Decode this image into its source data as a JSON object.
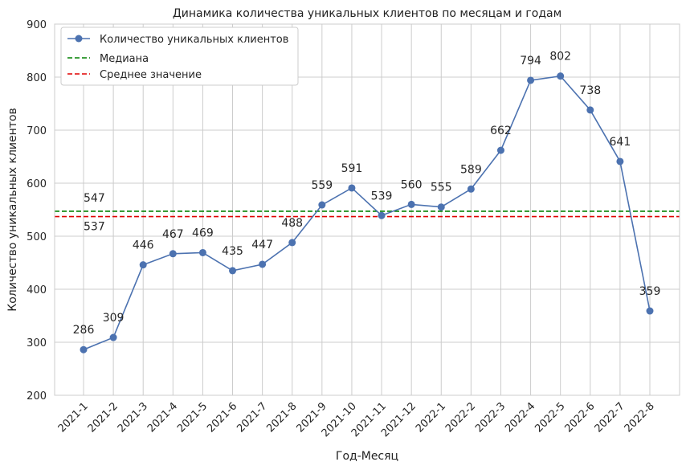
{
  "chart_data": {
    "type": "line",
    "title": "Динамика количества уникальных клиентов по месяцам и годам",
    "xlabel": "Год-Месяц",
    "ylabel": "Количество уникальных клиентов",
    "ylim": [
      200,
      900
    ],
    "yticks": [
      200,
      300,
      400,
      500,
      600,
      700,
      800,
      900
    ],
    "categories": [
      "2021-1",
      "2021-2",
      "2021-3",
      "2021-4",
      "2021-5",
      "2021-6",
      "2021-7",
      "2021-8",
      "2021-9",
      "2021-10",
      "2021-11",
      "2021-12",
      "2022-1",
      "2022-2",
      "2022-3",
      "2022-4",
      "2022-5",
      "2022-6",
      "2022-7",
      "2022-8"
    ],
    "series": [
      {
        "name": "Количество уникальных клиентов",
        "values": [
          286,
          309,
          446,
          467,
          469,
          435,
          447,
          488,
          559,
          591,
          539,
          560,
          555,
          589,
          662,
          794,
          802,
          738,
          641,
          359
        ],
        "color": "#4c72b0"
      }
    ],
    "reference_lines": [
      {
        "name": "Медиана",
        "value": 547,
        "label": "547",
        "color": "#008000",
        "style": "dashed"
      },
      {
        "name": "Среднее значение",
        "value": 537,
        "label": "537",
        "color": "#e00000",
        "style": "dashed"
      }
    ],
    "grid": true,
    "legend_position": "top-left"
  }
}
